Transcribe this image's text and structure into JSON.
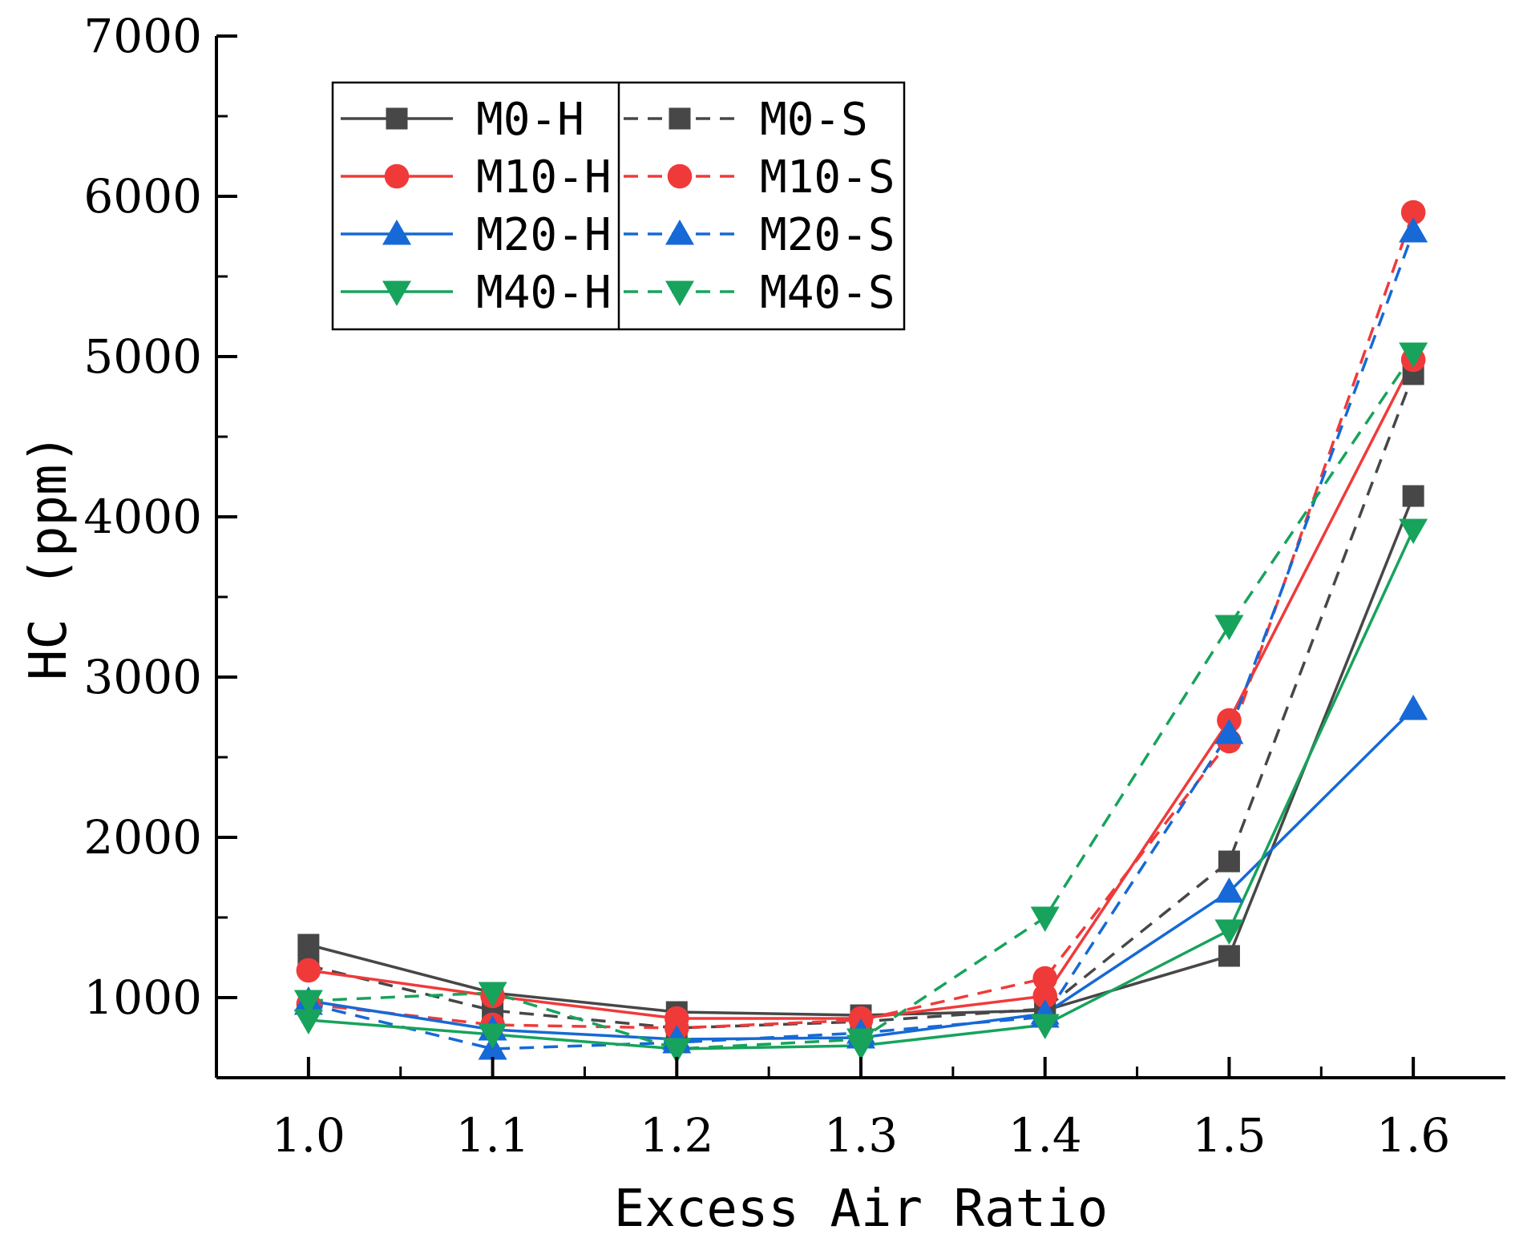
{
  "chart_data": {
    "type": "line",
    "title": "",
    "xlabel": "Excess Air Ratio",
    "ylabel": "HC (ppm)",
    "x": [
      1.0,
      1.1,
      1.2,
      1.3,
      1.4,
      1.5,
      1.6
    ],
    "x_tick_labels": [
      "1.0",
      "1.1",
      "1.2",
      "1.3",
      "1.4",
      "1.5",
      "1.6"
    ],
    "ylim": [
      500,
      7000
    ],
    "y_ticks": [
      1000,
      2000,
      3000,
      4000,
      5000,
      6000,
      7000
    ],
    "y_tick_labels": [
      "1000",
      "2000",
      "3000",
      "4000",
      "5000",
      "6000",
      "7000"
    ],
    "grid": false,
    "legend_position": "top-left",
    "series": [
      {
        "name": "M0-H",
        "color": "#474747",
        "marker": "square",
        "style": "solid",
        "values": [
          1330,
          1030,
          910,
          890,
          920,
          1260,
          4130
        ]
      },
      {
        "name": "M0-S",
        "color": "#474747",
        "marker": "square",
        "style": "dashed",
        "values": [
          1200,
          920,
          810,
          850,
          930,
          1850,
          4890
        ]
      },
      {
        "name": "M10-H",
        "color": "#f03a3a",
        "marker": "circle",
        "style": "solid",
        "values": [
          1170,
          1010,
          870,
          870,
          1010,
          2730,
          4980
        ]
      },
      {
        "name": "M10-S",
        "color": "#f03a3a",
        "marker": "circle",
        "style": "dashed",
        "values": [
          960,
          830,
          810,
          860,
          1120,
          2600,
          5900
        ]
      },
      {
        "name": "M20-H",
        "color": "#1669d6",
        "marker": "triangle-up",
        "style": "solid",
        "values": [
          980,
          800,
          740,
          750,
          900,
          1660,
          2800
        ]
      },
      {
        "name": "M20-S",
        "color": "#1669d6",
        "marker": "triangle-up",
        "style": "dashed",
        "values": [
          960,
          680,
          720,
          780,
          880,
          2650,
          5780
        ]
      },
      {
        "name": "M40-H",
        "color": "#17a35c",
        "marker": "triangle-down",
        "style": "solid",
        "values": [
          860,
          770,
          680,
          700,
          830,
          1420,
          3920
        ]
      },
      {
        "name": "M40-S",
        "color": "#17a35c",
        "marker": "triangle-down",
        "style": "dashed",
        "values": [
          980,
          1030,
          680,
          740,
          1500,
          3320,
          5020
        ]
      }
    ],
    "legend": {
      "left_column": [
        "M0-H",
        "M10-H",
        "M20-H",
        "M40-H"
      ],
      "right_column": [
        "M0-S",
        "M10-S",
        "M20-S",
        "M40-S"
      ]
    }
  }
}
